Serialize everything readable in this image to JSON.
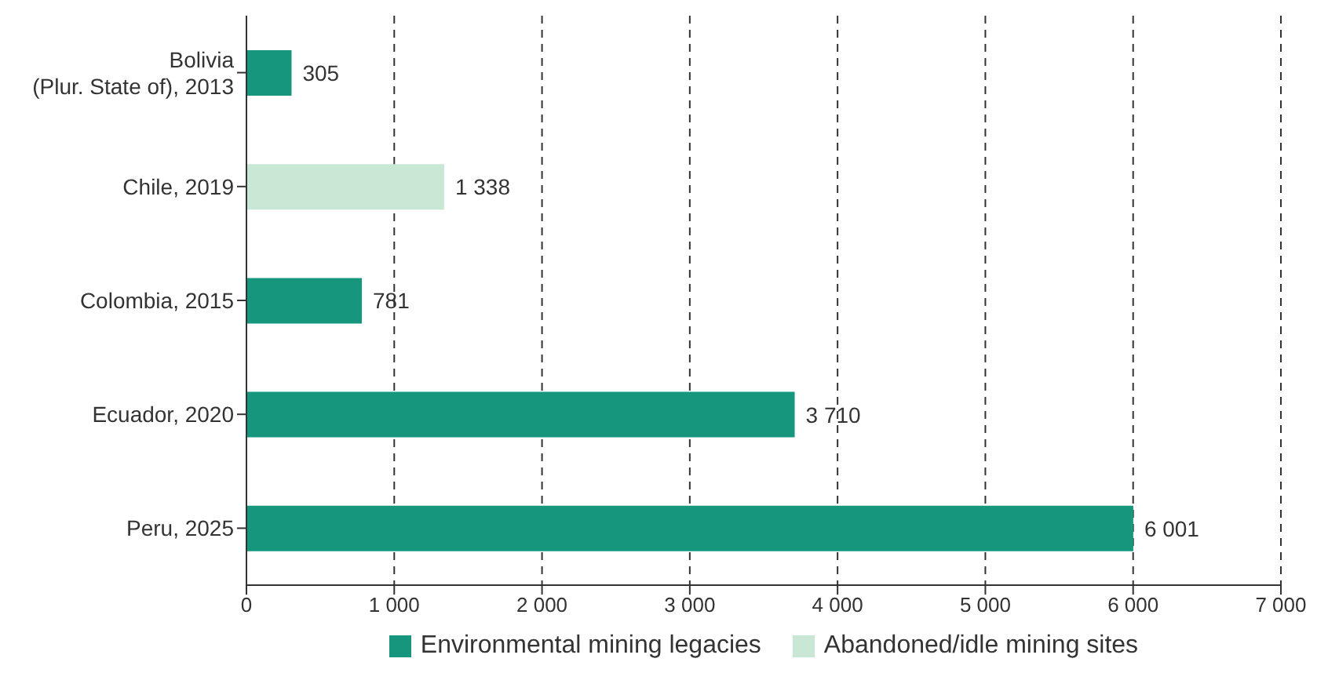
{
  "chart_data": {
    "type": "bar",
    "orientation": "horizontal",
    "stacked": true,
    "categories": [
      "Bolivia\n(Plur. State of), 2013",
      "Chile, 2019",
      "Colombia, 2015",
      "Ecuador, 2020",
      "Peru, 2025"
    ],
    "series": [
      {
        "name": "Environmental mining legacies",
        "color": "#16967c",
        "values": [
          305,
          null,
          781,
          3710,
          6001
        ],
        "value_labels": [
          "305",
          null,
          "781",
          "3 710",
          "6 001"
        ]
      },
      {
        "name": "Abandoned/idle mining sites",
        "color": "#c9e7d5",
        "values": [
          null,
          1338,
          null,
          null,
          null
        ],
        "value_labels": [
          null,
          "1 338",
          null,
          null,
          null
        ]
      }
    ],
    "xlim": [
      0,
      7000
    ],
    "xticks": [
      {
        "value": 0,
        "label": "0"
      },
      {
        "value": 1000,
        "label": "1 000"
      },
      {
        "value": 2000,
        "label": "2 000"
      },
      {
        "value": 3000,
        "label": "3 000"
      },
      {
        "value": 4000,
        "label": "4 000"
      },
      {
        "value": 5000,
        "label": "5 000"
      },
      {
        "value": 6000,
        "label": "6 000"
      },
      {
        "value": 7000,
        "label": "7 000"
      }
    ],
    "grid": "x",
    "legend": "bottom"
  }
}
